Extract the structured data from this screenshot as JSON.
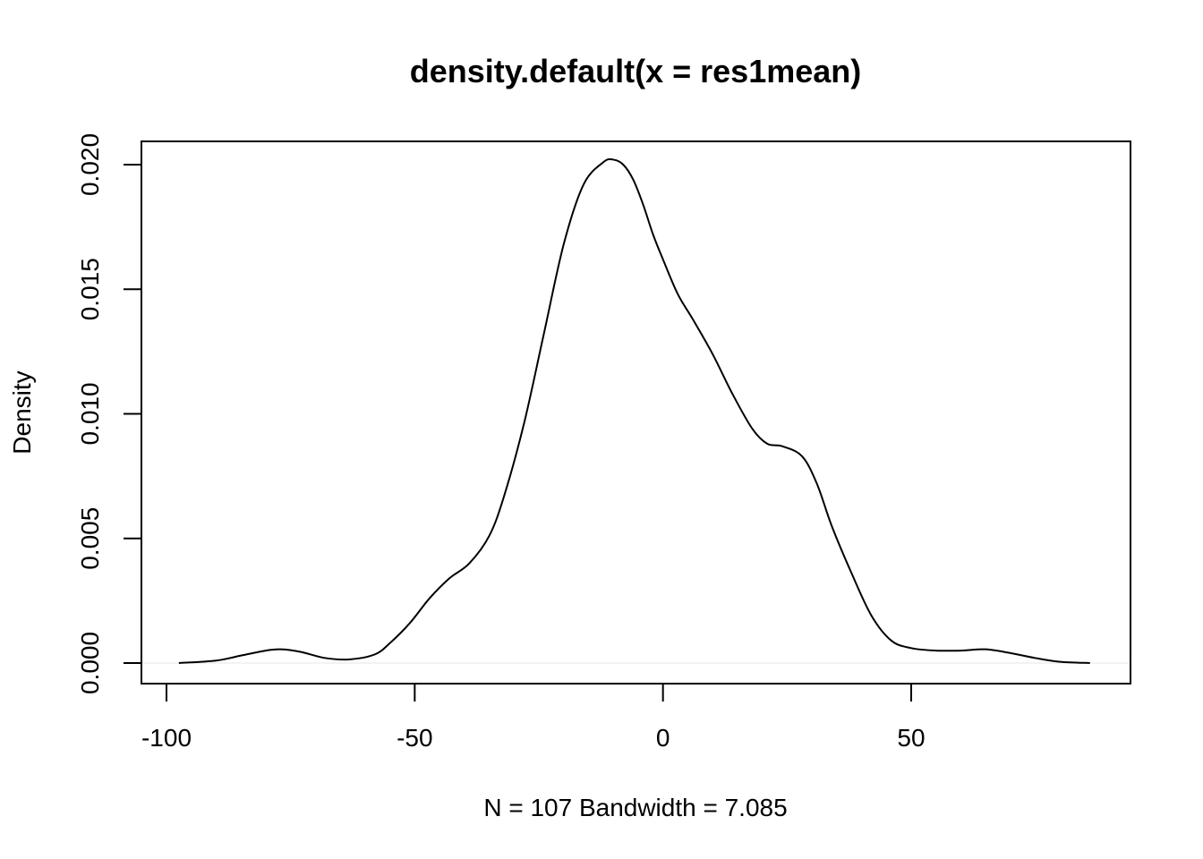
{
  "chart_data": {
    "type": "line",
    "title": "density.default(x = res1mean)",
    "xlabel": "N = 107   Bandwidth = 7.085",
    "ylabel": "Density",
    "xlim": [
      -100,
      90
    ],
    "ylim": [
      0,
      0.0205
    ],
    "x_ticks": [
      -100,
      -50,
      0,
      50
    ],
    "x_tick_labels": [
      "-100",
      "-50",
      "0",
      "50"
    ],
    "y_ticks": [
      0,
      0.005,
      0.01,
      0.015,
      0.02
    ],
    "y_tick_labels": [
      "0.000",
      "0.005",
      "0.010",
      "0.015",
      "0.020"
    ],
    "grid": false,
    "baseline": 0,
    "baseline_color": "#e6e6e6",
    "line_color": "#000000",
    "series": [
      {
        "x": [
          -97.5,
          -90,
          -85,
          -80,
          -77,
          -73,
          -68,
          -63,
          -58,
          -55,
          -51,
          -47,
          -43,
          -39,
          -35,
          -32,
          -28,
          -24,
          -20,
          -16,
          -12,
          -10,
          -8,
          -6,
          -4,
          -2,
          0,
          3,
          6,
          10,
          14,
          18,
          21,
          24,
          28,
          31,
          34,
          38,
          42,
          46,
          50,
          55,
          60,
          65,
          70,
          75,
          80,
          86
        ],
        "y": [
          0.0,
          0.0001,
          0.0003,
          0.0005,
          0.00055,
          0.00045,
          0.0002,
          0.00015,
          0.00035,
          0.0008,
          0.0016,
          0.0026,
          0.0034,
          0.004,
          0.0051,
          0.0067,
          0.0096,
          0.0132,
          0.0168,
          0.0192,
          0.0201,
          0.0202,
          0.02,
          0.0194,
          0.0184,
          0.0172,
          0.0162,
          0.0148,
          0.0138,
          0.0124,
          0.0108,
          0.0094,
          0.0088,
          0.0087,
          0.0083,
          0.0072,
          0.0055,
          0.0036,
          0.0019,
          0.0009,
          0.0006,
          0.0005,
          0.0005,
          0.00055,
          0.0004,
          0.0002,
          5e-05,
          0.0
        ]
      }
    ]
  }
}
